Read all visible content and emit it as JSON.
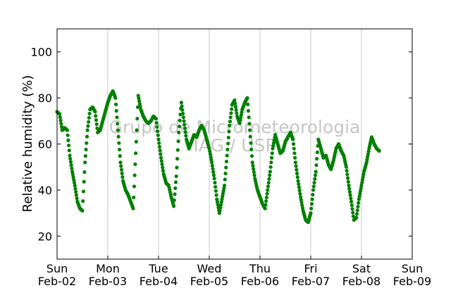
{
  "chart_data": {
    "type": "scatter",
    "ylabel": "Relative humidity (%)",
    "ylim": [
      10,
      110
    ],
    "yticks": [
      20,
      40,
      60,
      80,
      100
    ],
    "xlim_days": [
      0,
      7
    ],
    "xticks": [
      {
        "day": "Sun",
        "date": "Feb-02"
      },
      {
        "day": "Mon",
        "date": "Feb-03"
      },
      {
        "day": "Tue",
        "date": "Feb-04"
      },
      {
        "day": "Wed",
        "date": "Feb-05"
      },
      {
        "day": "Thu",
        "date": "Feb-06"
      },
      {
        "day": "Fri",
        "date": "Feb-07"
      },
      {
        "day": "Sat",
        "date": "Feb-08"
      },
      {
        "day": "Sun",
        "date": "Feb-09"
      }
    ],
    "vertical_grid": true,
    "marker_color": "#008000",
    "watermark": [
      "Grupo de Micrometeorologia",
      "IAG / USP"
    ],
    "series": [
      {
        "points": [
          [
            0.0,
            74
          ],
          [
            0.05,
            73
          ],
          [
            0.1,
            66
          ],
          [
            0.15,
            67
          ],
          [
            0.2,
            66
          ],
          [
            0.25,
            55
          ],
          [
            0.3,
            48
          ],
          [
            0.35,
            42
          ],
          [
            0.4,
            35
          ],
          [
            0.45,
            32
          ],
          [
            0.5,
            31
          ],
          [
            0.55,
            52
          ],
          [
            0.6,
            66
          ],
          [
            0.65,
            75
          ],
          [
            0.7,
            76
          ],
          [
            0.75,
            74
          ],
          [
            0.8,
            65
          ],
          [
            0.85,
            66
          ],
          [
            0.9,
            70
          ],
          [
            0.95,
            74
          ],
          [
            1.0,
            78
          ],
          [
            1.05,
            81
          ],
          [
            1.1,
            83
          ],
          [
            1.15,
            80
          ],
          [
            1.2,
            66
          ],
          [
            1.25,
            52
          ],
          [
            1.3,
            44
          ],
          [
            1.35,
            40
          ],
          [
            1.4,
            38
          ],
          [
            1.45,
            35
          ],
          [
            1.5,
            32
          ],
          [
            1.55,
            56
          ],
          [
            1.6,
            81
          ],
          [
            1.65,
            75
          ],
          [
            1.7,
            72
          ],
          [
            1.75,
            70
          ],
          [
            1.8,
            69
          ],
          [
            1.85,
            70
          ],
          [
            1.9,
            72
          ],
          [
            1.95,
            71
          ],
          [
            2.0,
            62
          ],
          [
            2.05,
            54
          ],
          [
            2.1,
            47
          ],
          [
            2.15,
            43
          ],
          [
            2.2,
            42
          ],
          [
            2.25,
            37
          ],
          [
            2.3,
            33
          ],
          [
            2.35,
            46
          ],
          [
            2.4,
            65
          ],
          [
            2.45,
            78
          ],
          [
            2.5,
            70
          ],
          [
            2.55,
            62
          ],
          [
            2.6,
            58
          ],
          [
            2.65,
            61
          ],
          [
            2.7,
            64
          ],
          [
            2.75,
            63
          ],
          [
            2.8,
            66
          ],
          [
            2.85,
            68
          ],
          [
            2.9,
            66
          ],
          [
            2.95,
            62
          ],
          [
            3.0,
            58
          ],
          [
            3.05,
            52
          ],
          [
            3.1,
            45
          ],
          [
            3.15,
            36
          ],
          [
            3.2,
            30
          ],
          [
            3.25,
            36
          ],
          [
            3.3,
            42
          ],
          [
            3.35,
            55
          ],
          [
            3.4,
            68
          ],
          [
            3.45,
            77
          ],
          [
            3.5,
            79
          ],
          [
            3.55,
            72
          ],
          [
            3.6,
            69
          ],
          [
            3.65,
            75
          ],
          [
            3.7,
            78
          ],
          [
            3.75,
            80
          ],
          [
            3.8,
            66
          ],
          [
            3.85,
            52
          ],
          [
            3.9,
            45
          ],
          [
            3.95,
            40
          ],
          [
            4.0,
            37
          ],
          [
            4.05,
            34
          ],
          [
            4.1,
            32
          ],
          [
            4.15,
            40
          ],
          [
            4.2,
            48
          ],
          [
            4.25,
            58
          ],
          [
            4.3,
            64
          ],
          [
            4.35,
            60
          ],
          [
            4.4,
            56
          ],
          [
            4.45,
            57
          ],
          [
            4.5,
            61
          ],
          [
            4.55,
            63
          ],
          [
            4.6,
            65
          ],
          [
            4.65,
            62
          ],
          [
            4.7,
            52
          ],
          [
            4.75,
            44
          ],
          [
            4.8,
            37
          ],
          [
            4.85,
            31
          ],
          [
            4.9,
            27
          ],
          [
            4.95,
            26
          ],
          [
            5.0,
            30
          ],
          [
            5.05,
            40
          ],
          [
            5.1,
            48
          ],
          [
            5.15,
            62
          ],
          [
            5.2,
            58
          ],
          [
            5.25,
            54
          ],
          [
            5.3,
            55
          ],
          [
            5.35,
            51
          ],
          [
            5.4,
            49
          ],
          [
            5.45,
            53
          ],
          [
            5.5,
            58
          ],
          [
            5.55,
            60
          ],
          [
            5.6,
            57
          ],
          [
            5.65,
            55
          ],
          [
            5.7,
            50
          ],
          [
            5.75,
            42
          ],
          [
            5.8,
            35
          ],
          [
            5.85,
            27
          ],
          [
            5.9,
            28
          ],
          [
            5.95,
            36
          ],
          [
            6.0,
            42
          ],
          [
            6.05,
            48
          ],
          [
            6.1,
            52
          ],
          [
            6.15,
            58
          ],
          [
            6.2,
            63
          ],
          [
            6.25,
            60
          ],
          [
            6.3,
            58
          ],
          [
            6.35,
            57
          ]
        ]
      }
    ]
  }
}
